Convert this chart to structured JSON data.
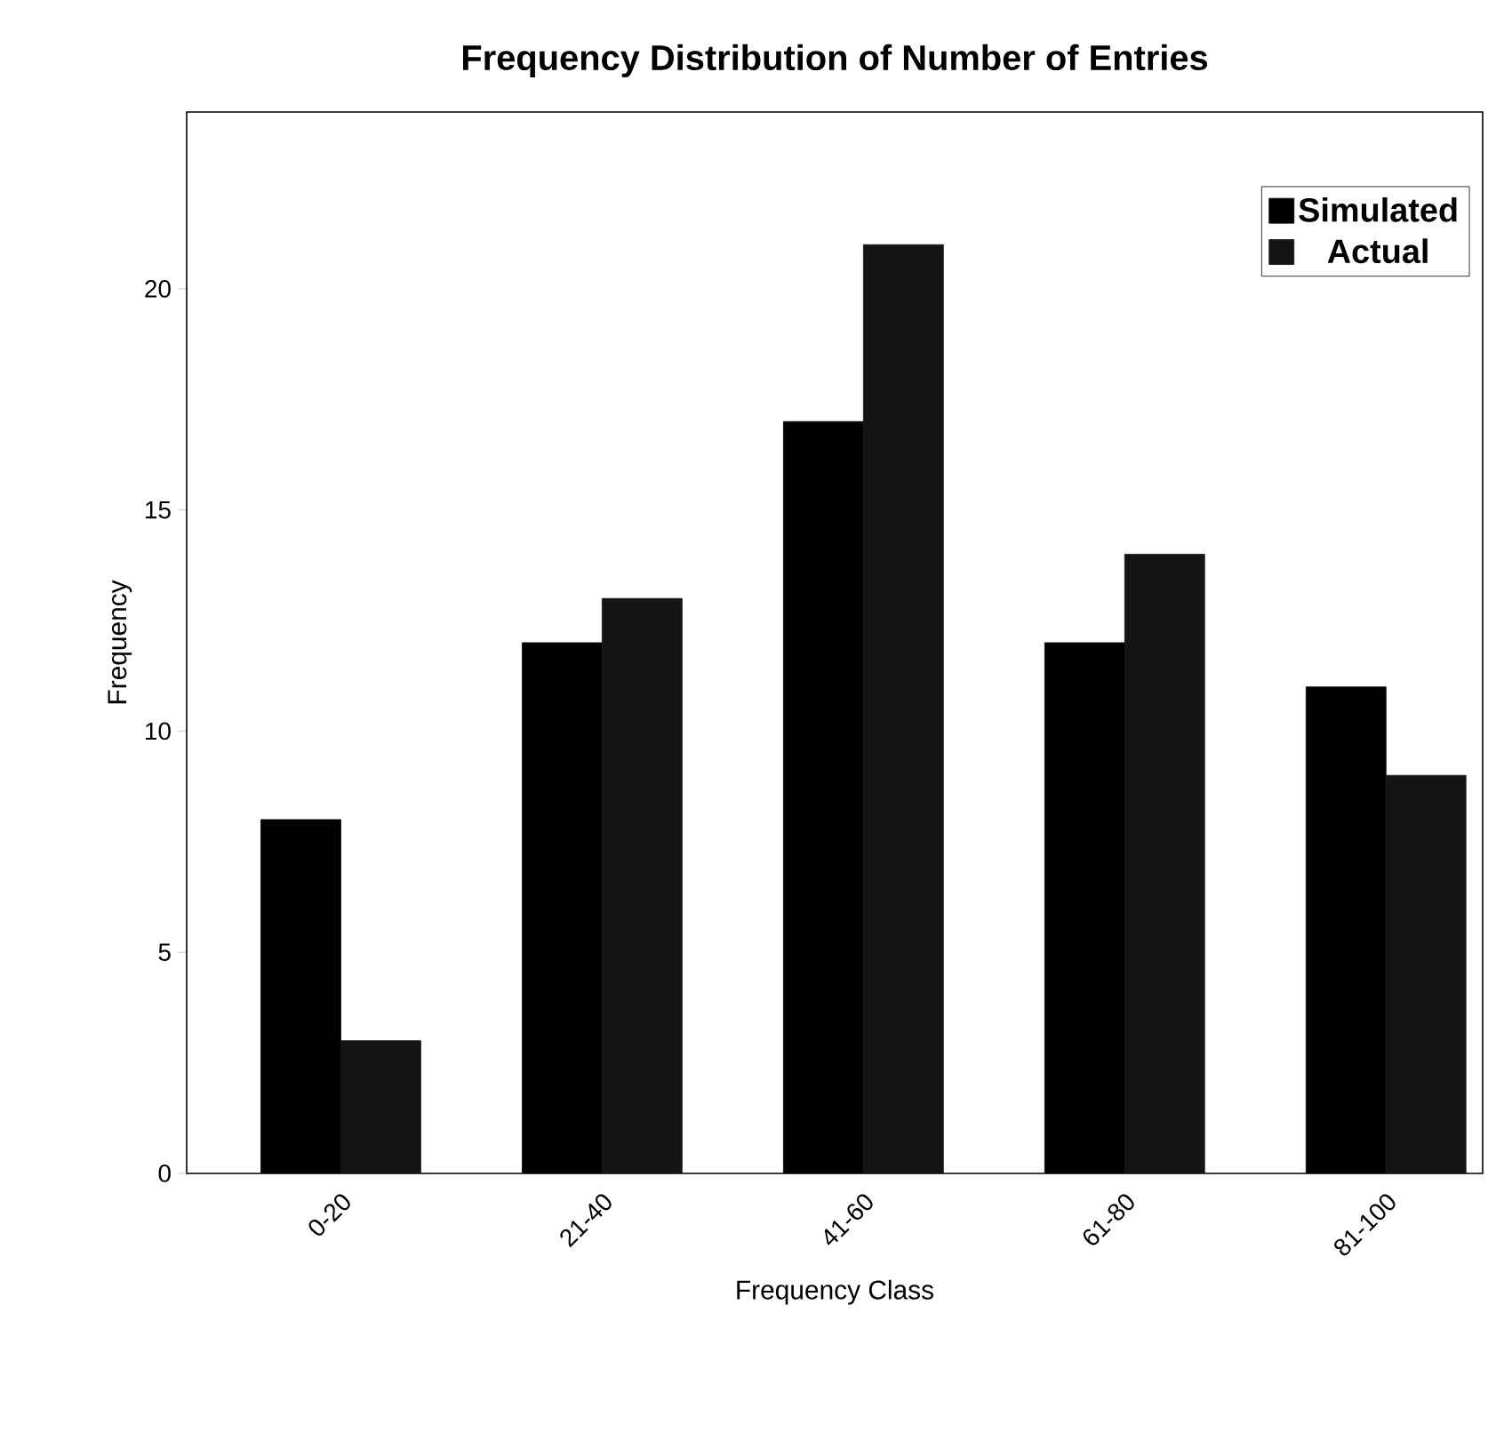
{
  "chart_data": {
    "type": "bar",
    "title": "Frequency Distribution of Number of Entries",
    "xlabel": "Frequency Class",
    "ylabel": "Frequency",
    "categories": [
      "0-20",
      "21-40",
      "41-60",
      "61-80",
      "81-100"
    ],
    "series": [
      {
        "name": "Simulated",
        "color": "#000000",
        "values": [
          8,
          12,
          17,
          12,
          11
        ]
      },
      {
        "name": "Actual",
        "color": "#141414",
        "values": [
          3,
          13,
          21,
          14,
          9
        ]
      }
    ],
    "ylim": [
      0,
      24
    ],
    "yticks": [
      0,
      5,
      10,
      15,
      20
    ],
    "legend": "top right"
  }
}
